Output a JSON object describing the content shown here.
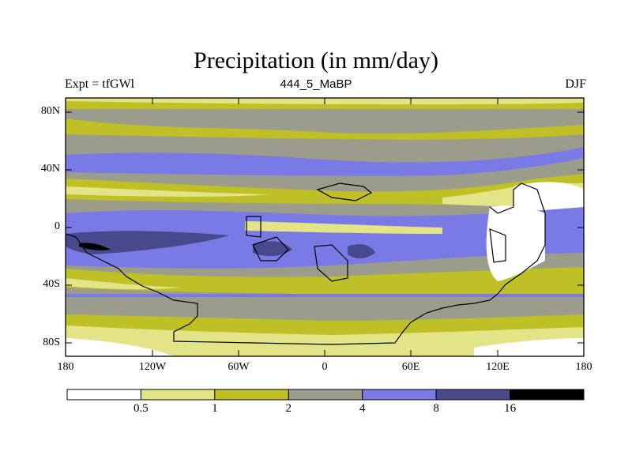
{
  "title": "Precipitation (in mm/day)",
  "subtitle_left": "Expt = tfGWl",
  "subtitle_center": "444_5_MaBP",
  "subtitle_right": "DJF",
  "lat_ticks": [
    {
      "label": "80N",
      "lat": 80
    },
    {
      "label": "40N",
      "lat": 40
    },
    {
      "label": "0",
      "lat": 0
    },
    {
      "label": "40S",
      "lat": -40
    },
    {
      "label": "80S",
      "lat": -80
    }
  ],
  "lon_ticks": [
    {
      "label": "180",
      "lon": -180
    },
    {
      "label": "120W",
      "lon": -120
    },
    {
      "label": "60W",
      "lon": -60
    },
    {
      "label": "0",
      "lon": 0
    },
    {
      "label": "60E",
      "lon": 60
    },
    {
      "label": "120E",
      "lon": 120
    },
    {
      "label": "180",
      "lon": 180
    }
  ],
  "colorbar": {
    "levels": [
      "0.5",
      "1",
      "2",
      "4",
      "8",
      "16"
    ],
    "colors": [
      "#ffffff",
      "#e3e387",
      "#bfbf26",
      "#9c9c8c",
      "#7a7ae6",
      "#48488c",
      "#000000"
    ]
  }
}
